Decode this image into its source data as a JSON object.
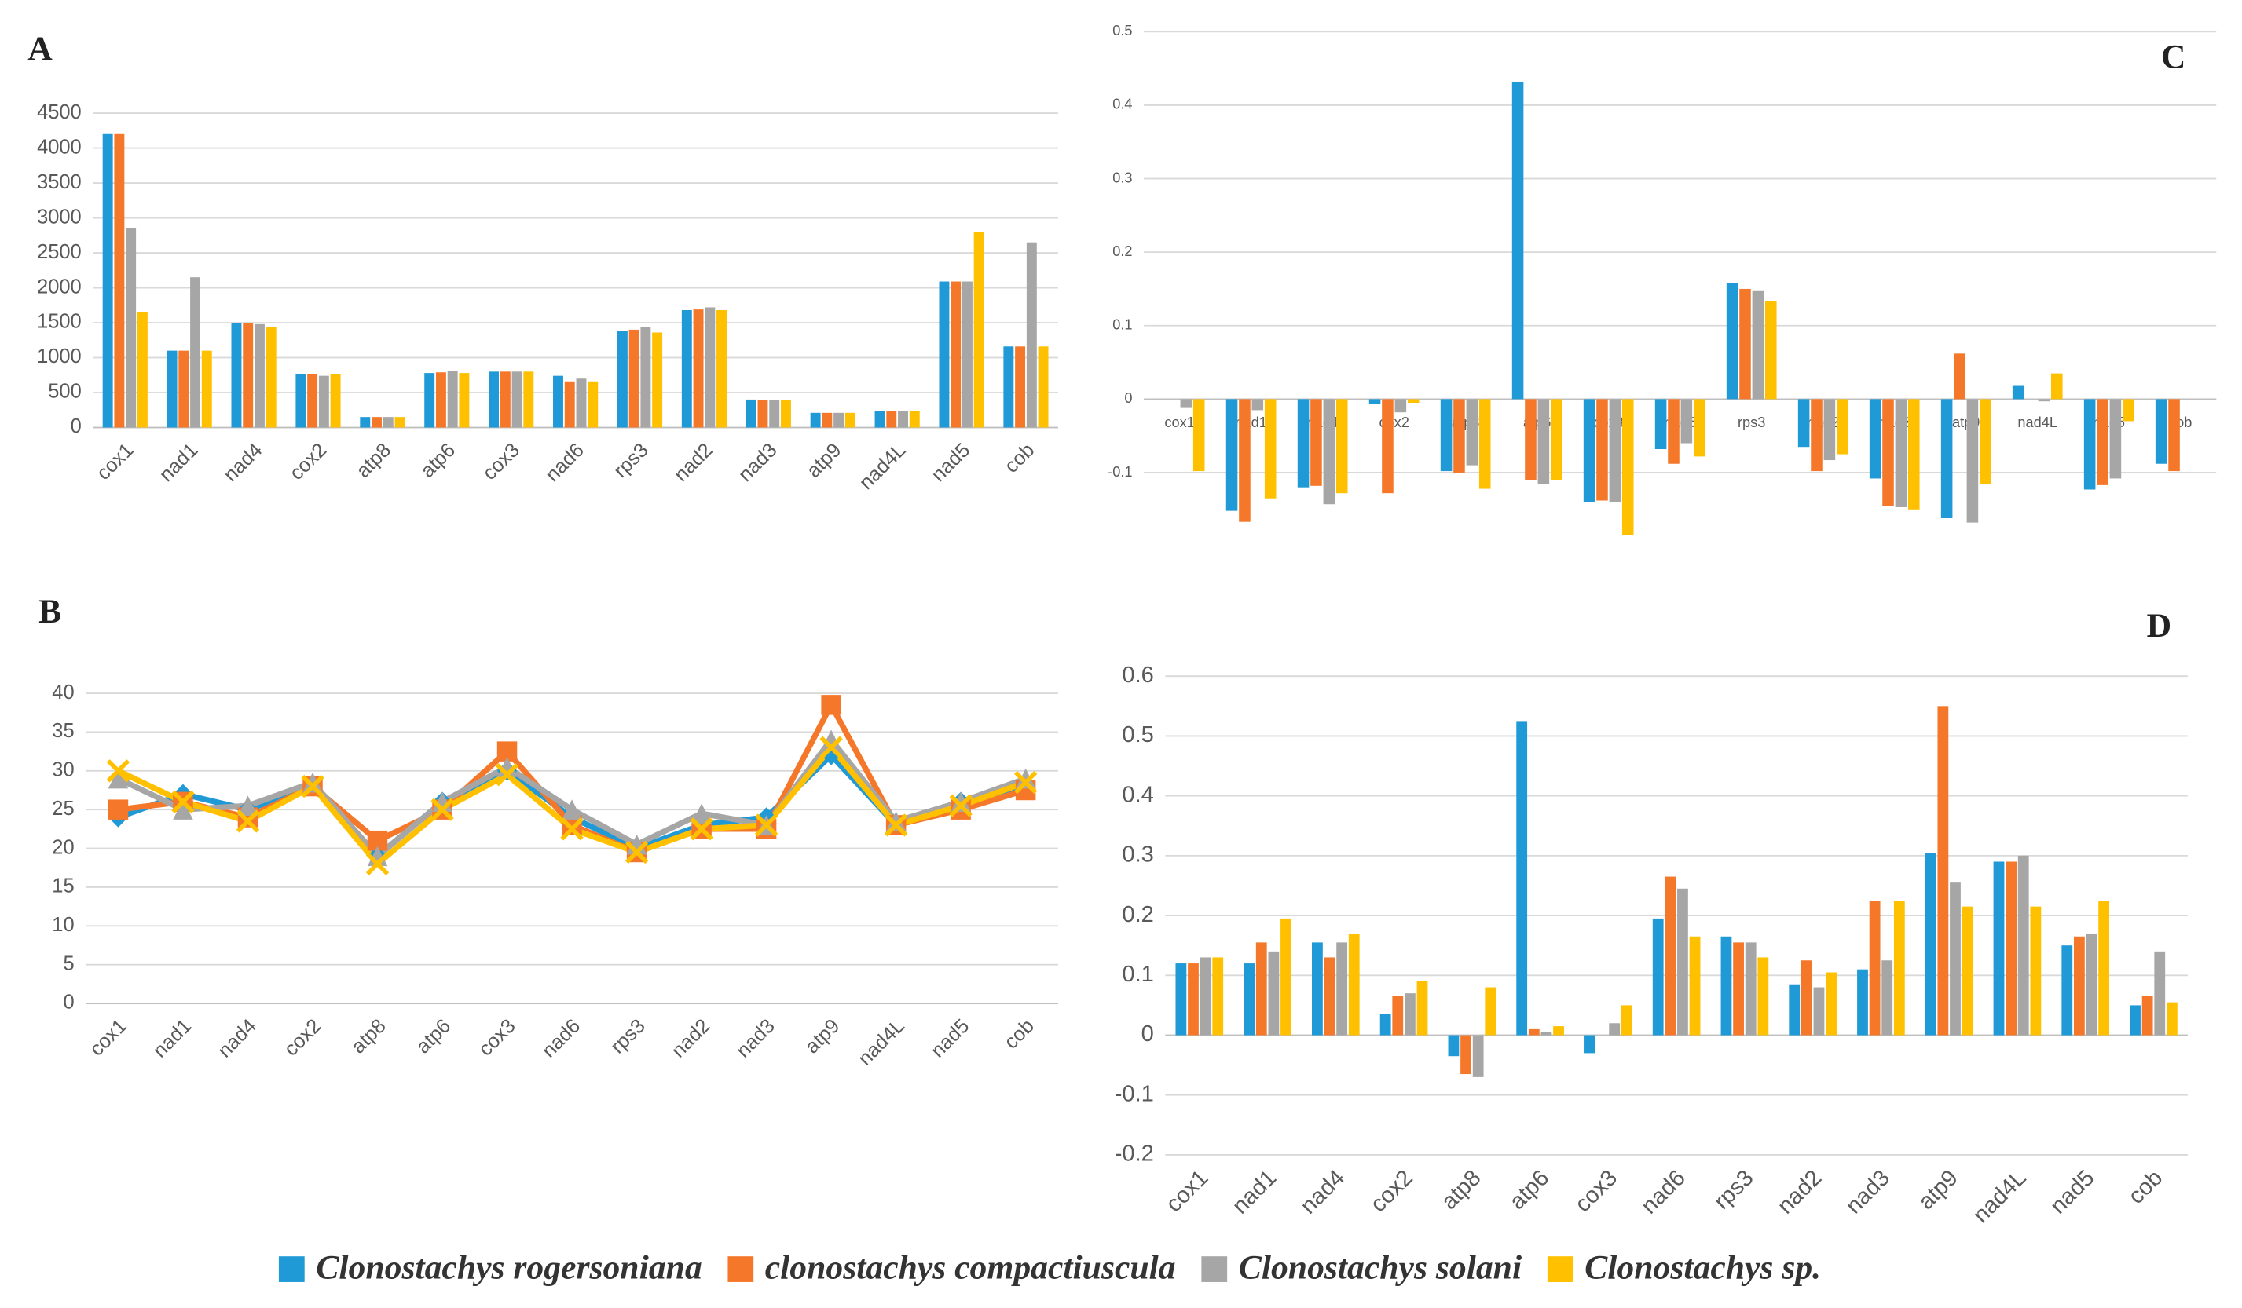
{
  "chart_data": [
    {
      "type": "bar",
      "title": "A",
      "grid": true,
      "categories": [
        "cox1",
        "nad1",
        "nad4",
        "cox2",
        "atp8",
        "atp6",
        "cox3",
        "nad6",
        "rps3",
        "nad2",
        "nad3",
        "atp9",
        "nad4L",
        "nad5",
        "cob"
      ],
      "ylim": [
        0,
        4500
      ],
      "yticks": [
        0,
        500,
        1000,
        1500,
        2000,
        2500,
        3000,
        3500,
        4000,
        4500
      ],
      "series": [
        {
          "name": "Clonostachys rogersoniana",
          "color": "#1f9ad6",
          "values": [
            4200,
            1100,
            1500,
            770,
            150,
            780,
            800,
            740,
            1380,
            1680,
            400,
            210,
            240,
            2090,
            1160
          ]
        },
        {
          "name": "clonostachys compactiuscula",
          "color": "#f5782a",
          "values": [
            4200,
            1100,
            1500,
            770,
            150,
            790,
            800,
            660,
            1400,
            1690,
            390,
            210,
            240,
            2090,
            1160
          ]
        },
        {
          "name": "Clonostachys solani",
          "color": "#a6a6a6",
          "values": [
            2850,
            2150,
            1480,
            740,
            150,
            810,
            800,
            700,
            1440,
            1720,
            390,
            210,
            240,
            2090,
            2650
          ]
        },
        {
          "name": "Clonostachys sp.",
          "color": "#ffc000",
          "values": [
            1650,
            1100,
            1440,
            760,
            150,
            780,
            800,
            660,
            1360,
            1680,
            390,
            210,
            240,
            2800,
            1160
          ]
        }
      ]
    },
    {
      "type": "line",
      "title": "B",
      "grid": true,
      "categories": [
        "cox1",
        "nad1",
        "nad4",
        "cox2",
        "atp8",
        "atp6",
        "cox3",
        "nad6",
        "rps3",
        "nad2",
        "nad3",
        "atp9",
        "nad4L",
        "nad5",
        "cob"
      ],
      "ylim": [
        0,
        40
      ],
      "yticks": [
        0,
        5,
        10,
        15,
        20,
        25,
        30,
        35,
        40
      ],
      "series": [
        {
          "name": "Clonostachys rogersoniana",
          "color": "#1f9ad6",
          "marker": "diamond",
          "values": [
            24,
            27,
            25,
            28,
            19,
            26,
            30,
            24,
            20,
            23,
            24,
            32,
            23,
            26,
            28
          ]
        },
        {
          "name": "clonostachys compactiuscula",
          "color": "#f5782a",
          "marker": "square",
          "values": [
            25,
            26,
            24,
            28,
            21,
            25,
            32.5,
            23,
            19.5,
            22.5,
            22.5,
            38.5,
            23,
            25,
            27.5
          ]
        },
        {
          "name": "Clonostachys solani",
          "color": "#a6a6a6",
          "marker": "triangle",
          "values": [
            29,
            25,
            25.5,
            28.5,
            19,
            26,
            30.5,
            25,
            20.5,
            24.5,
            23,
            34,
            23.5,
            26,
            29
          ]
        },
        {
          "name": "Clonostachys sp.",
          "color": "#ffc000",
          "marker": "x",
          "values": [
            30,
            26,
            23.5,
            28,
            18,
            25,
            29.5,
            22.5,
            19.5,
            22.5,
            23,
            33,
            23,
            25.5,
            28.5
          ]
        }
      ]
    },
    {
      "type": "bar",
      "title": "C",
      "grid": true,
      "category_labels_at_zero": true,
      "categories": [
        "cox1",
        "nad1",
        "nad4",
        "cox2",
        "atp8",
        "atp6",
        "cox3",
        "nad6",
        "rps3",
        "nad2",
        "nad3",
        "atp9",
        "nad4L",
        "nad5",
        "cob"
      ],
      "ylim": [
        -0.2,
        0.5
      ],
      "yticks": [
        -0.1,
        0,
        0.1,
        0.2,
        0.3,
        0.4,
        0.5
      ],
      "series": [
        {
          "name": "Clonostachys rogersoniana",
          "color": "#1f9ad6",
          "values": [
            0,
            -0.152,
            -0.12,
            -0.006,
            -0.098,
            0.432,
            -0.14,
            -0.068,
            0.158,
            -0.065,
            -0.108,
            -0.162,
            0.018,
            -0.123,
            -0.088
          ]
        },
        {
          "name": "clonostachys compactiuscula",
          "color": "#f5782a",
          "values": [
            0,
            -0.167,
            -0.118,
            -0.128,
            -0.1,
            -0.11,
            -0.138,
            -0.088,
            0.15,
            -0.098,
            -0.145,
            0.062,
            0,
            -0.117,
            -0.098
          ]
        },
        {
          "name": "Clonostachys solani",
          "color": "#a6a6a6",
          "values": [
            -0.012,
            -0.015,
            -0.143,
            -0.018,
            -0.09,
            -0.115,
            -0.14,
            -0.06,
            0.147,
            -0.083,
            -0.147,
            -0.168,
            -0.003,
            -0.108,
            0
          ]
        },
        {
          "name": "Clonostachys sp.",
          "color": "#ffc000",
          "values": [
            -0.098,
            -0.135,
            -0.128,
            -0.005,
            -0.122,
            -0.11,
            -0.185,
            -0.078,
            0.133,
            -0.075,
            -0.15,
            -0.115,
            0.035,
            -0.03,
            0
          ]
        }
      ]
    },
    {
      "type": "bar",
      "title": "D",
      "grid": true,
      "categories": [
        "cox1",
        "nad1",
        "nad4",
        "cox2",
        "atp8",
        "atp6",
        "cox3",
        "nad6",
        "rps3",
        "nad2",
        "nad3",
        "atp9",
        "nad4L",
        "nad5",
        "cob"
      ],
      "ylim": [
        -0.2,
        0.6
      ],
      "yticks": [
        -0.2,
        -0.1,
        0,
        0.1,
        0.2,
        0.3,
        0.4,
        0.5,
        0.6
      ],
      "series": [
        {
          "name": "Clonostachys rogersoniana",
          "color": "#1f9ad6",
          "values": [
            0.12,
            0.12,
            0.155,
            0.035,
            -0.035,
            0.525,
            -0.03,
            0.195,
            0.165,
            0.085,
            0.11,
            0.305,
            0.29,
            0.15,
            0.05
          ]
        },
        {
          "name": "clonostachys compactiuscula",
          "color": "#f5782a",
          "values": [
            0.12,
            0.155,
            0.13,
            0.065,
            -0.065,
            0.01,
            0,
            0.265,
            0.155,
            0.125,
            0.225,
            0.55,
            0.29,
            0.165,
            0.065
          ]
        },
        {
          "name": "Clonostachys solani",
          "color": "#a6a6a6",
          "values": [
            0.13,
            0.14,
            0.155,
            0.07,
            -0.07,
            0.005,
            0.02,
            0.245,
            0.155,
            0.08,
            0.125,
            0.255,
            0.3,
            0.17,
            0.14
          ]
        },
        {
          "name": "Clonostachys sp.",
          "color": "#ffc000",
          "values": [
            0.13,
            0.195,
            0.17,
            0.09,
            0.08,
            0.015,
            0.05,
            0.165,
            0.13,
            0.105,
            0.225,
            0.215,
            0.215,
            0.225,
            0.055
          ]
        }
      ]
    }
  ]
}
